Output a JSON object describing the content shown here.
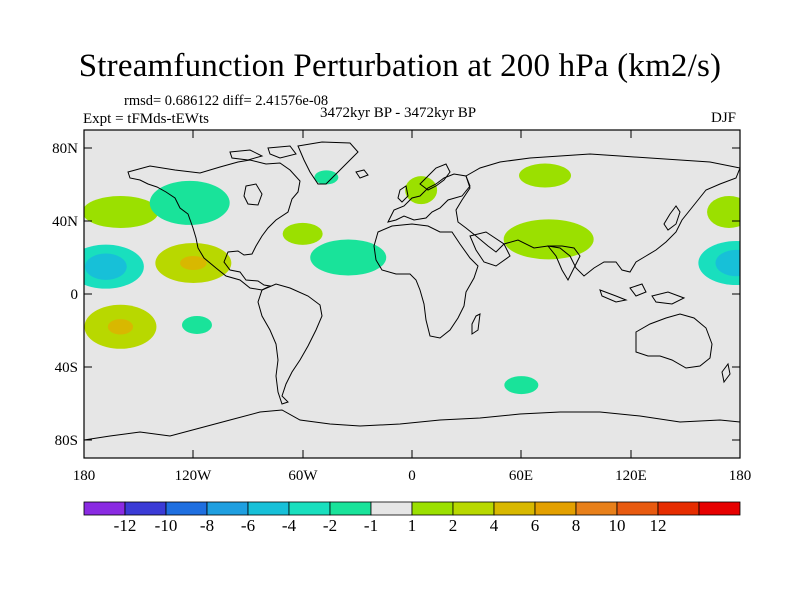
{
  "title": "Streamfunction Perturbation at 200 hPa (km2/s)",
  "stats": "rmsd= 0.686122 diff= 2.41576e-08",
  "experiment": "Expt = tFMds-tEWts",
  "period": "3472kyr BP - 3472kyr BP",
  "season": "DJF",
  "axes": {
    "y_ticks": [
      "80N",
      "40N",
      "0",
      "40S",
      "80S"
    ],
    "x_ticks": [
      "180",
      "120W",
      "60W",
      "0",
      "60E",
      "120E",
      "180"
    ]
  },
  "colorbar": {
    "colors": [
      "#8a2be2",
      "#3b3bd6",
      "#1f6fe0",
      "#1f9fe0",
      "#17c0d8",
      "#19dfbe",
      "#19e39a",
      "#e6e6e6",
      "#9be000",
      "#b8d800",
      "#d8b800",
      "#e3a000",
      "#e8801a",
      "#e85a10",
      "#e62c00",
      "#e60000"
    ],
    "labels": [
      "-12",
      "-10",
      "-8",
      "-6",
      "-4",
      "-2",
      "-1",
      "1",
      "2",
      "4",
      "6",
      "8",
      "10",
      "12"
    ]
  },
  "map_features": {
    "projection": "cylindrical-equidistant",
    "background_color": "#e6e6e6",
    "anomaly_patches": [
      {
        "name": "north-pacific-east",
        "lon": -160,
        "lat": 45,
        "level": "2"
      },
      {
        "name": "subtropical-central-pacific",
        "lon": -168,
        "lat": 15,
        "level": "-2"
      },
      {
        "name": "north-pacific-canada",
        "lon": -122,
        "lat": 50,
        "level": "-1"
      },
      {
        "name": "eastern-pacific-north",
        "lon": -120,
        "lat": 17,
        "level": "4"
      },
      {
        "name": "atlantic-30n",
        "lon": -60,
        "lat": 33,
        "level": "2"
      },
      {
        "name": "atlantic-subtropical",
        "lon": -35,
        "lat": 20,
        "level": "-1"
      },
      {
        "name": "greenland-east",
        "lon": -47,
        "lat": 64,
        "level": "-1"
      },
      {
        "name": "scandinavia",
        "lon": 5,
        "lat": 57,
        "level": "2"
      },
      {
        "name": "siberia",
        "lon": 73,
        "lat": 65,
        "level": "2"
      },
      {
        "name": "south-asia",
        "lon": 75,
        "lat": 30,
        "level": "2"
      },
      {
        "name": "west-pacific-north",
        "lon": 174,
        "lat": 45,
        "level": "2"
      },
      {
        "name": "west-pacific-subtropics",
        "lon": 178,
        "lat": 17,
        "level": "-2"
      },
      {
        "name": "south-pacific",
        "lon": -160,
        "lat": -18,
        "level": "4"
      },
      {
        "name": "south-pacific-east",
        "lon": -118,
        "lat": -17,
        "level": "-1"
      },
      {
        "name": "southern-ocean-indian",
        "lon": 60,
        "lat": -50,
        "level": "-1"
      }
    ]
  }
}
